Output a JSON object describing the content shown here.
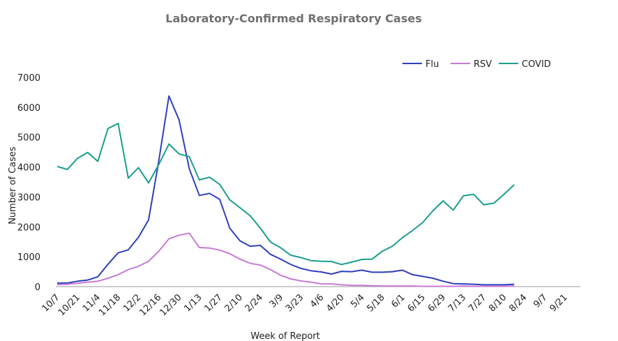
{
  "chart_data": {
    "type": "line",
    "title": "Laboratory-Confirmed Respiratory Cases",
    "x_label": "Week of Report",
    "y_label": "Number of Cases",
    "categories": [
      "10/7",
      null,
      "10/21",
      null,
      "11/4",
      null,
      "11/18",
      null,
      "12/2",
      null,
      "12/16",
      null,
      "12/30",
      null,
      "1/13",
      null,
      "1/27",
      null,
      "2/10",
      null,
      "2/24",
      null,
      "3/9",
      null,
      "3/23",
      null,
      "4/6",
      null,
      "4/20",
      null,
      "5/4",
      null,
      "5/18",
      null,
      "6/1",
      null,
      "6/15",
      null,
      "6/29",
      null,
      "7/13",
      null,
      "7/27",
      null,
      "8/10",
      null,
      "8/24",
      null,
      "9/7",
      null,
      "9/21"
    ],
    "series": [
      {
        "name": "Flu",
        "color": "#2e3fbf",
        "values": [
          120,
          120,
          180,
          220,
          330,
          750,
          1130,
          1230,
          1650,
          2230,
          4200,
          6380,
          5580,
          3950,
          3050,
          3120,
          2920,
          1950,
          1530,
          1350,
          1380,
          1080,
          920,
          740,
          610,
          530,
          490,
          420,
          510,
          500,
          550,
          480,
          480,
          500,
          550,
          400,
          340,
          280,
          180,
          100,
          90,
          80,
          60,
          60,
          60,
          80,
          null,
          null,
          null,
          null,
          null
        ]
      },
      {
        "name": "RSV",
        "color": "#c87ad6",
        "values": [
          70,
          80,
          110,
          150,
          180,
          280,
          400,
          570,
          680,
          850,
          1180,
          1600,
          1720,
          1790,
          1310,
          1290,
          1220,
          1100,
          920,
          780,
          720,
          570,
          380,
          260,
          190,
          150,
          90,
          90,
          60,
          40,
          40,
          30,
          20,
          20,
          20,
          20,
          10,
          10,
          10,
          10,
          20,
          10,
          10,
          10,
          10,
          20,
          null,
          null,
          null,
          null,
          null
        ]
      },
      {
        "name": "COVID",
        "color": "#1a9e8c",
        "values": [
          4020,
          3920,
          4290,
          4490,
          4190,
          5290,
          5460,
          3630,
          3980,
          3470,
          4080,
          4770,
          4440,
          4350,
          3570,
          3660,
          3420,
          2900,
          2640,
          2370,
          1960,
          1490,
          1300,
          1050,
          970,
          870,
          850,
          840,
          740,
          820,
          910,
          920,
          1180,
          1350,
          1640,
          1880,
          2150,
          2540,
          2870,
          2560,
          3040,
          3090,
          2740,
          2790,
          3090,
          3410,
          null,
          null,
          null,
          null,
          null
        ]
      }
    ],
    "ylim": [
      0,
      7000
    ],
    "yticks": [
      0,
      1000,
      2000,
      3000,
      4000,
      5000,
      6000,
      7000
    ],
    "grid": false,
    "legend": "top-right"
  }
}
